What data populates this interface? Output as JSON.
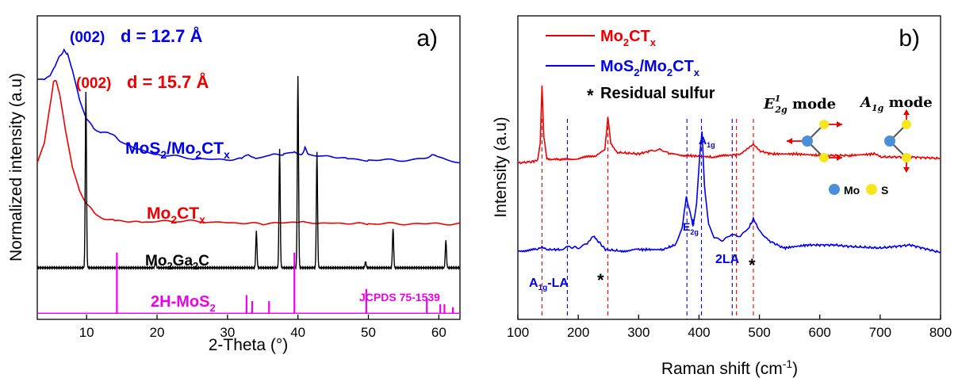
{
  "chart_data": [
    {
      "type": "line",
      "panel_label": "a)",
      "xlabel": "2-Theta (°)",
      "ylabel": "Normalized intensity (a.u)",
      "xlim": [
        3,
        63
      ],
      "xticks": [
        10,
        20,
        30,
        40,
        50,
        60
      ],
      "yticks_shown": false,
      "annotations": {
        "blue_peak": {
          "prefix": "(002)",
          "text": "d = 12.7 Å"
        },
        "red_peak": {
          "prefix": "(002)",
          "text": "d = 15.7 Å"
        },
        "blue_series_label": [
          "MoS",
          "2",
          "/Mo",
          "2",
          "CT",
          "x"
        ],
        "red_series_label": [
          "Mo",
          "2",
          "CT",
          "x"
        ],
        "black_series_label": [
          "Mo",
          "2",
          "Ga",
          "2",
          "C"
        ],
        "magenta_series_label": [
          "2H-MoS",
          "2"
        ],
        "reference": "JCPDS 75-1539"
      },
      "series": [
        {
          "key": "blue",
          "color": "#0000ee",
          "points": [
            [
              3,
              0.795
            ],
            [
              4,
              0.79
            ],
            [
              4.8,
              0.8
            ],
            [
              5.5,
              0.83
            ],
            [
              6.2,
              0.87
            ],
            [
              6.8,
              0.885
            ],
            [
              7.3,
              0.875
            ],
            [
              8,
              0.82
            ],
            [
              9,
              0.72
            ],
            [
              10,
              0.66
            ],
            [
              11,
              0.63
            ],
            [
              12,
              0.615
            ],
            [
              13,
              0.62
            ],
            [
              14,
              0.605
            ],
            [
              15,
              0.585
            ],
            [
              17,
              0.56
            ],
            [
              20,
              0.545
            ],
            [
              25,
              0.53
            ],
            [
              30,
              0.525
            ],
            [
              32,
              0.53
            ],
            [
              33,
              0.545
            ],
            [
              34,
              0.53
            ],
            [
              36,
              0.54
            ],
            [
              38,
              0.545
            ],
            [
              39.5,
              0.55
            ],
            [
              40.5,
              0.54
            ],
            [
              41,
              0.565
            ],
            [
              41.5,
              0.545
            ],
            [
              43,
              0.54
            ],
            [
              47,
              0.53
            ],
            [
              50,
              0.525
            ],
            [
              55,
              0.525
            ],
            [
              58,
              0.53
            ],
            [
              59,
              0.54
            ],
            [
              60,
              0.535
            ],
            [
              63,
              0.515
            ]
          ]
        },
        {
          "key": "red",
          "color": "#ee0000",
          "points": [
            [
              3,
              0.52
            ],
            [
              4,
              0.58
            ],
            [
              4.8,
              0.7
            ],
            [
              5.3,
              0.78
            ],
            [
              5.7,
              0.785
            ],
            [
              6.2,
              0.74
            ],
            [
              7,
              0.62
            ],
            [
              8,
              0.5
            ],
            [
              9,
              0.42
            ],
            [
              10,
              0.38
            ],
            [
              11,
              0.355
            ],
            [
              12,
              0.335
            ],
            [
              14,
              0.325
            ],
            [
              18,
              0.32
            ],
            [
              23,
              0.325
            ],
            [
              28,
              0.32
            ],
            [
              35,
              0.315
            ],
            [
              40,
              0.32
            ],
            [
              41,
              0.318
            ],
            [
              50,
              0.315
            ],
            [
              63,
              0.315
            ]
          ]
        },
        {
          "key": "black",
          "color": "#000000",
          "baseline": 0.17,
          "peaks": [
            [
              9.9,
              0.58
            ],
            [
              19.8,
              0.03
            ],
            [
              34.1,
              0.12
            ],
            [
              37.4,
              0.39
            ],
            [
              40.0,
              0.63
            ],
            [
              42.7,
              0.38
            ],
            [
              49.6,
              0.02
            ],
            [
              53.5,
              0.13
            ],
            [
              61.0,
              0.09
            ]
          ]
        },
        {
          "key": "magenta",
          "color": "#ee00ee",
          "baseline": 0.02,
          "sticks": [
            [
              14.3,
              0.2
            ],
            [
              32.7,
              0.06
            ],
            [
              33.5,
              0.04
            ],
            [
              35.9,
              0.04
            ],
            [
              39.5,
              0.2
            ],
            [
              49.7,
              0.08
            ],
            [
              58.3,
              0.05
            ],
            [
              60.2,
              0.03
            ],
            [
              60.8,
              0.03
            ],
            [
              62.0,
              0.02
            ]
          ]
        }
      ]
    },
    {
      "type": "line",
      "panel_label": "b)",
      "xlabel": [
        "Raman shift (cm",
        "-1",
        ")"
      ],
      "ylabel": "Intensity (a.u)",
      "xlim": [
        100,
        800
      ],
      "xticks": [
        100,
        200,
        300,
        400,
        500,
        600,
        700,
        800
      ],
      "yticks_shown": false,
      "legend": [
        {
          "color": "#ee0000",
          "label": [
            "Mo",
            "2",
            "CT",
            "x"
          ]
        },
        {
          "color": "#0000ee",
          "label": [
            "MoS",
            "2",
            "/Mo",
            "2",
            "CT",
            "x"
          ]
        },
        {
          "symbol": "*",
          "label": "Residual sulfur"
        }
      ],
      "annotations": {
        "a1g": [
          "A",
          "1g"
        ],
        "e2g": [
          "E",
          "1",
          "2g"
        ],
        "two_la": "2LA",
        "a1g_la": [
          "A",
          "1g",
          "-LA"
        ]
      },
      "inset": {
        "e2g_mode": [
          "E",
          "1",
          "2g",
          " mode"
        ],
        "a1g_mode": [
          "A",
          "1g",
          " mode"
        ],
        "mo_label": "Mo",
        "s_label": "S",
        "mo_color": "#4a90d9",
        "s_color": "#f5e61e",
        "arrow_color": "#ee0000"
      },
      "vlines": [
        {
          "x": 140,
          "color": "#ee0000"
        },
        {
          "x": 182,
          "color": "#0000ee"
        },
        {
          "x": 249,
          "color": "#ee0000"
        },
        {
          "x": 380,
          "color": "#0000ee"
        },
        {
          "x": 404,
          "color": "#0000ee"
        },
        {
          "x": 455,
          "color": "#0000ee"
        },
        {
          "x": 462,
          "color": "#ee0000"
        },
        {
          "x": 490,
          "color": "#ee0000"
        }
      ],
      "series": [
        {
          "key": "red",
          "color": "#ee0000",
          "points": [
            [
              100,
              0.515
            ],
            [
              125,
              0.52
            ],
            [
              133,
              0.525
            ],
            [
              137,
              0.58
            ],
            [
              140,
              0.77
            ],
            [
              143,
              0.6
            ],
            [
              148,
              0.53
            ],
            [
              170,
              0.525
            ],
            [
              200,
              0.53
            ],
            [
              230,
              0.54
            ],
            [
              244,
              0.56
            ],
            [
              249,
              0.665
            ],
            [
              254,
              0.58
            ],
            [
              265,
              0.55
            ],
            [
              300,
              0.545
            ],
            [
              320,
              0.555
            ],
            [
              335,
              0.56
            ],
            [
              350,
              0.545
            ],
            [
              380,
              0.54
            ],
            [
              420,
              0.535
            ],
            [
              450,
              0.54
            ],
            [
              470,
              0.545
            ],
            [
              480,
              0.56
            ],
            [
              490,
              0.575
            ],
            [
              500,
              0.555
            ],
            [
              520,
              0.545
            ],
            [
              560,
              0.545
            ],
            [
              600,
              0.54
            ],
            [
              650,
              0.54
            ],
            [
              690,
              0.545
            ],
            [
              700,
              0.535
            ],
            [
              750,
              0.535
            ],
            [
              800,
              0.53
            ]
          ]
        },
        {
          "key": "blue",
          "color": "#0000ee",
          "points": [
            [
              100,
              0.225
            ],
            [
              130,
              0.23
            ],
            [
              140,
              0.24
            ],
            [
              150,
              0.23
            ],
            [
              170,
              0.23
            ],
            [
              182,
              0.24
            ],
            [
              200,
              0.235
            ],
            [
              215,
              0.25
            ],
            [
              225,
              0.275
            ],
            [
              232,
              0.26
            ],
            [
              245,
              0.23
            ],
            [
              270,
              0.225
            ],
            [
              300,
              0.23
            ],
            [
              340,
              0.23
            ],
            [
              360,
              0.245
            ],
            [
              372,
              0.3
            ],
            [
              379,
              0.405
            ],
            [
              384,
              0.36
            ],
            [
              390,
              0.31
            ],
            [
              396,
              0.38
            ],
            [
              402,
              0.56
            ],
            [
              405,
              0.62
            ],
            [
              409,
              0.44
            ],
            [
              416,
              0.31
            ],
            [
              425,
              0.27
            ],
            [
              440,
              0.26
            ],
            [
              455,
              0.28
            ],
            [
              470,
              0.275
            ],
            [
              482,
              0.3
            ],
            [
              490,
              0.33
            ],
            [
              500,
              0.29
            ],
            [
              515,
              0.26
            ],
            [
              540,
              0.235
            ],
            [
              580,
              0.245
            ],
            [
              600,
              0.245
            ],
            [
              625,
              0.245
            ],
            [
              650,
              0.24
            ],
            [
              700,
              0.235
            ],
            [
              750,
              0.245
            ],
            [
              800,
              0.22
            ]
          ]
        }
      ]
    }
  ]
}
